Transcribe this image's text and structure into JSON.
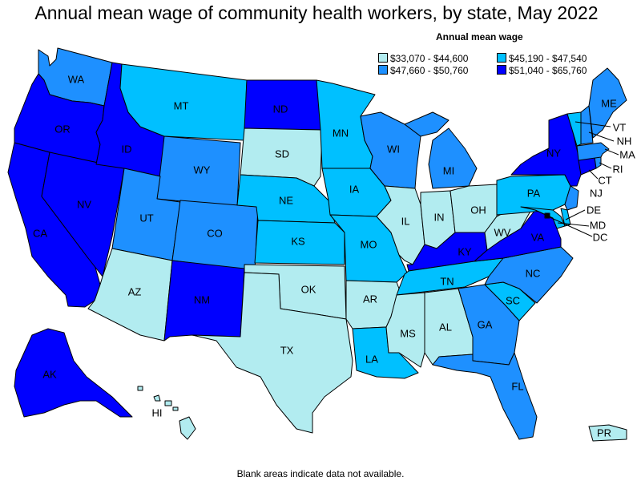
{
  "title": "Annual mean wage of community health workers, by state, May 2022",
  "footnote": "Blank areas indicate data not available.",
  "legend": {
    "title": "Annual mean wage",
    "items": [
      {
        "label": "$33,070 - $44,600",
        "color": "#b2ecf0"
      },
      {
        "label": "$45,190 - $47,540",
        "color": "#00c0ff"
      },
      {
        "label": "$47,660 - $50,760",
        "color": "#1e90ff"
      },
      {
        "label": "$51,040 - $65,760",
        "color": "#0000ff"
      }
    ]
  },
  "states": {
    "WA": 2,
    "OR": 3,
    "ID": 3,
    "MT": 1,
    "ND": 3,
    "MN": 1,
    "WI": 2,
    "MI": 2,
    "ME": 2,
    "NH": 2,
    "VT": 1,
    "NY": 3,
    "MA": 2,
    "RI": 2,
    "CT": 3,
    "NJ": 2,
    "PA": 1,
    "DE": 1,
    "MD": 1,
    "DC": 3,
    "CA": 3,
    "NV": 3,
    "WY": 2,
    "SD": 0,
    "NE": 1,
    "IA": 1,
    "IL": 0,
    "IN": 0,
    "OH": 0,
    "WV": 0,
    "VA": 3,
    "KY": 3,
    "UT": 2,
    "CO": 2,
    "KS": 1,
    "MO": 1,
    "TN": 1,
    "NC": 2,
    "AZ": 0,
    "NM": 3,
    "OK": 0,
    "AR": 0,
    "MS": 0,
    "AL": 0,
    "GA": 2,
    "SC": 1,
    "TX": 0,
    "LA": 1,
    "FL": 2,
    "AK": 3,
    "HI": 0,
    "PR": 0
  }
}
